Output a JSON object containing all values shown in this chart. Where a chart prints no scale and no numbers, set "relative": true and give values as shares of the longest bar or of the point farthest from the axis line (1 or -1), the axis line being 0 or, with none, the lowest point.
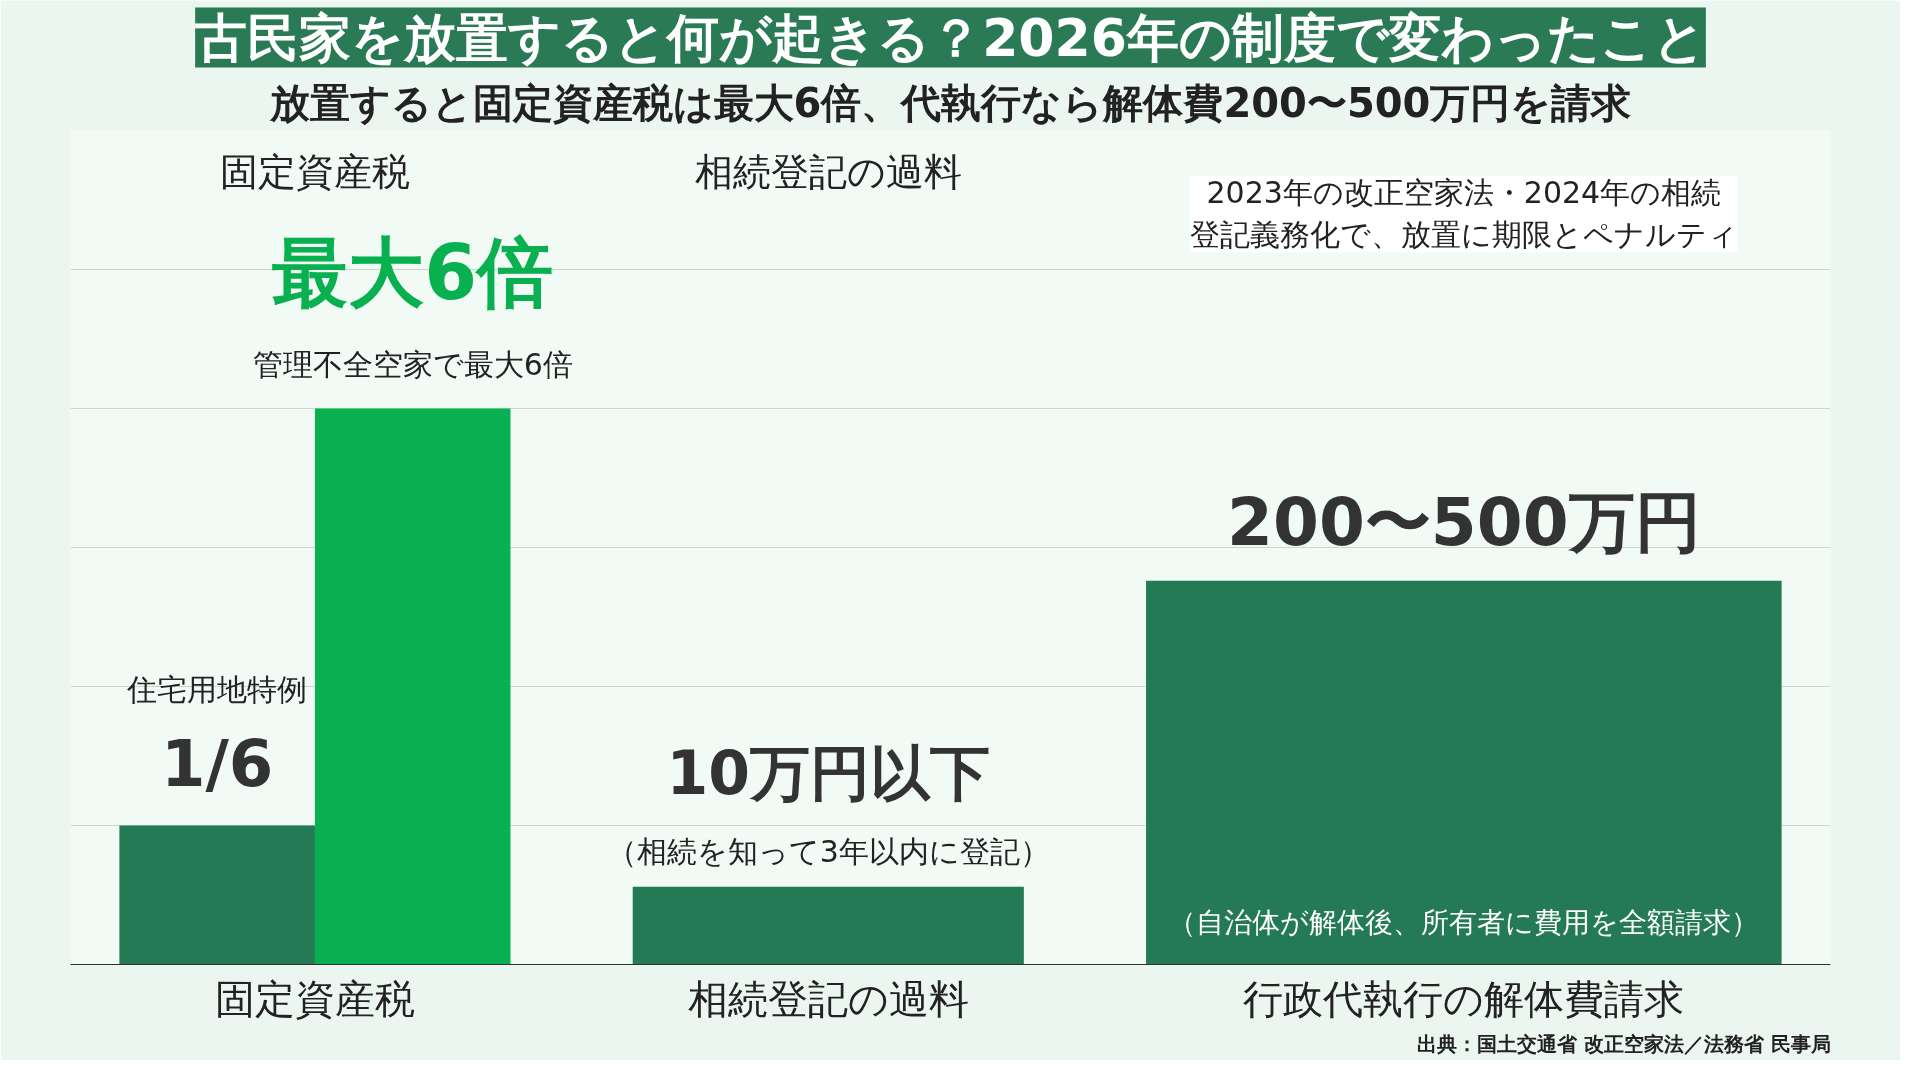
{
  "chart_data": {
    "type": "bar",
    "title": "古民家を放置すると何が起きる？2026年の制度で変わったこと",
    "subtitle": "放置すると固定資産税は最大6倍、代執行なら解体費200〜500万円を請求",
    "relative": true,
    "grid": "y",
    "categories": [
      "固定資産税",
      "相続登記の過料",
      "行政代執行の解体費請求"
    ],
    "series": [
      {
        "color": "#237a55",
        "values": [
          0.25,
          0.14,
          0.69
        ]
      },
      {
        "color": "#08b050",
        "values": [
          1,
          null,
          null
        ]
      }
    ],
    "annotations": [
      "固定資産税",
      "相続登記の過料",
      "2023年の改正空家法・2024年の相続登記義務化で、放置に期限とペナルティ",
      "最大6倍",
      "管理不全空家で最大6倍",
      "住宅用地特例",
      "1/6",
      "10万円以下",
      "（相続を知って3年以内に登記）",
      "200〜500万円",
      "（自治体が解体後、所有者に費用を全額請求）",
      "出典：国土交通省 改正空家法／法務省 民事局"
    ]
  }
}
